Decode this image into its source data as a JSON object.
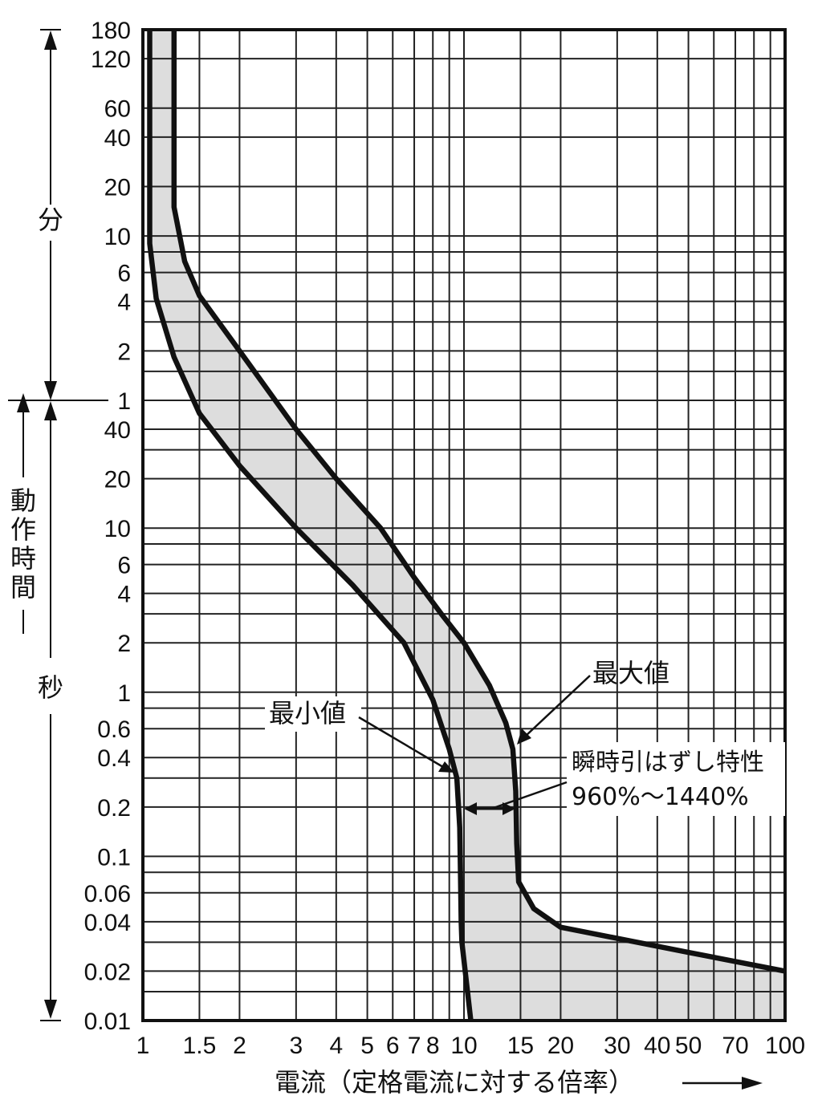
{
  "chart_data": {
    "type": "area",
    "xlabel": "電流（定格電流に対する倍率）",
    "ylabel_parts": [
      "動作時間"
    ],
    "unit_minutes": "分",
    "unit_seconds": "秒",
    "x_scale": "log",
    "xlim": [
      1,
      100
    ],
    "x_tick_labels": [
      {
        "v": 1,
        "label": "1"
      },
      {
        "v": 1.5,
        "label": "1.5"
      },
      {
        "v": 2,
        "label": "2"
      },
      {
        "v": 3,
        "label": "3"
      },
      {
        "v": 4,
        "label": "4"
      },
      {
        "v": 5,
        "label": "5"
      },
      {
        "v": 6,
        "label": "6"
      },
      {
        "v": 7,
        "label": "7"
      },
      {
        "v": 8,
        "label": "8"
      },
      {
        "v": 10,
        "label": "10"
      },
      {
        "v": 15,
        "label": "15"
      },
      {
        "v": 20,
        "label": "20"
      },
      {
        "v": 30,
        "label": "30"
      },
      {
        "v": 40,
        "label": "40"
      },
      {
        "v": 50,
        "label": "50"
      },
      {
        "v": 70,
        "label": "70"
      },
      {
        "v": 100,
        "label": "100"
      }
    ],
    "y_scale": "log",
    "y_unit_note": "seconds",
    "ylim_seconds": [
      0.01,
      10800
    ],
    "y_tick_labels": [
      {
        "s": 10800,
        "label": "180"
      },
      {
        "s": 7200,
        "label": "120"
      },
      {
        "s": 3600,
        "label": "60"
      },
      {
        "s": 2400,
        "label": "40"
      },
      {
        "s": 1200,
        "label": "20"
      },
      {
        "s": 600,
        "label": "10"
      },
      {
        "s": 360,
        "label": "6"
      },
      {
        "s": 240,
        "label": "4"
      },
      {
        "s": 120,
        "label": "2"
      },
      {
        "s": 60,
        "label": "1"
      },
      {
        "s": 40,
        "label": "40"
      },
      {
        "s": 20,
        "label": "20"
      },
      {
        "s": 10,
        "label": "10"
      },
      {
        "s": 6,
        "label": "6"
      },
      {
        "s": 4,
        "label": "4"
      },
      {
        "s": 2,
        "label": "2"
      },
      {
        "s": 1,
        "label": "1"
      },
      {
        "s": 0.6,
        "label": "0.6"
      },
      {
        "s": 0.4,
        "label": "0.4"
      },
      {
        "s": 0.2,
        "label": "0.2"
      },
      {
        "s": 0.1,
        "label": "0.1"
      },
      {
        "s": 0.06,
        "label": "0.06"
      },
      {
        "s": 0.04,
        "label": "0.04"
      },
      {
        "s": 0.02,
        "label": "0.02"
      },
      {
        "s": 0.01,
        "label": "0.01"
      }
    ],
    "series": [
      {
        "name": "最小値",
        "points": [
          [
            1.05,
            10800
          ],
          [
            1.05,
            540
          ],
          [
            1.1,
            250
          ],
          [
            1.25,
            110
          ],
          [
            1.5,
            50
          ],
          [
            2,
            24
          ],
          [
            3,
            10
          ],
          [
            4.5,
            4.5
          ],
          [
            6.5,
            2
          ],
          [
            8,
            0.9
          ],
          [
            9,
            0.45
          ],
          [
            9.5,
            0.3
          ],
          [
            9.7,
            0.15
          ],
          [
            9.75,
            0.08
          ],
          [
            9.8,
            0.04
          ],
          [
            9.85,
            0.03
          ],
          [
            10.5,
            0.01
          ]
        ]
      },
      {
        "name": "最大値",
        "points": [
          [
            1.25,
            10800
          ],
          [
            1.25,
            900
          ],
          [
            1.35,
            420
          ],
          [
            1.5,
            260
          ],
          [
            2,
            120
          ],
          [
            3,
            40
          ],
          [
            4,
            20
          ],
          [
            5.5,
            10
          ],
          [
            7,
            5
          ],
          [
            8.5,
            3
          ],
          [
            10,
            2
          ],
          [
            12,
            1.1
          ],
          [
            13.5,
            0.65
          ],
          [
            14.2,
            0.45
          ],
          [
            14.5,
            0.25
          ],
          [
            14.6,
            0.12
          ],
          [
            14.8,
            0.07
          ],
          [
            16.5,
            0.048
          ],
          [
            20,
            0.037
          ],
          [
            50,
            0.026
          ],
          [
            100,
            0.02
          ]
        ]
      }
    ],
    "annotations": {
      "max_label": "最大値",
      "min_label": "最小値",
      "instant_title": "瞬時引はずし特性",
      "instant_range": "960%〜1440%"
    },
    "fill_color": "#dddddd",
    "line_color": "#111111",
    "grid": true
  }
}
